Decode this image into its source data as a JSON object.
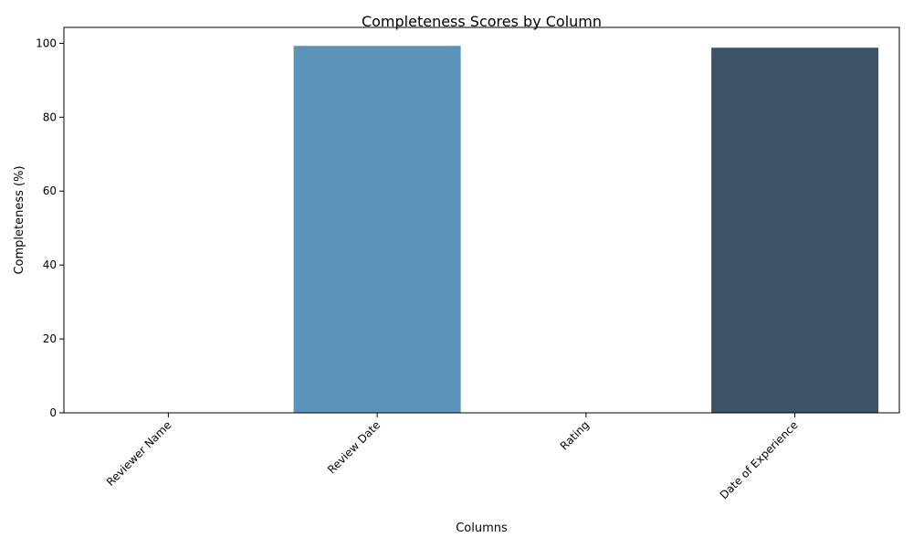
{
  "chart_data": {
    "type": "bar",
    "title": "Completeness Scores by Column",
    "xlabel": "Columns",
    "ylabel": "Completeness (%)",
    "categories": [
      "Reviewer Name",
      "Review Date",
      "Rating",
      "Date of Experience"
    ],
    "values": [
      0,
      99.3,
      0,
      98.8
    ],
    "colors": [
      "#5a9bd5",
      "#5b93b9",
      "#4a6c8a",
      "#3c5266"
    ],
    "ylim": [
      0,
      104.3
    ],
    "yticks": [
      0,
      20,
      40,
      60,
      80,
      100
    ],
    "grid": false,
    "legend": "none"
  }
}
